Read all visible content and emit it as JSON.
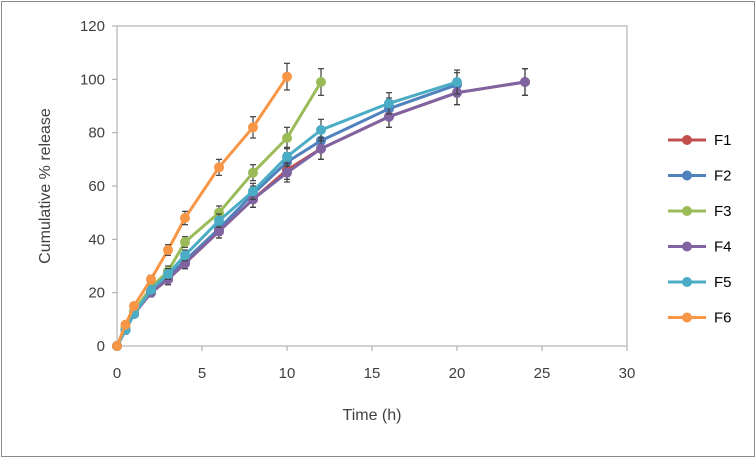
{
  "chart_data": {
    "type": "line",
    "title": "",
    "xlabel": "Time (h)",
    "ylabel": "Cumulative % release",
    "xlim": [
      0,
      30
    ],
    "ylim": [
      0,
      120
    ],
    "xticks": [
      0,
      5,
      10,
      15,
      20,
      25,
      30
    ],
    "yticks": [
      0,
      20,
      40,
      60,
      80,
      100,
      120
    ],
    "grid": false,
    "legend_position": "right",
    "series": [
      {
        "name": "F1",
        "color": "#c0504d",
        "x": [
          0,
          0.5,
          1,
          2,
          3,
          4,
          6,
          8,
          10,
          12,
          16,
          20,
          24
        ],
        "y": [
          0,
          6,
          12,
          20,
          25,
          31,
          43,
          55,
          66,
          74,
          86,
          95,
          99
        ],
        "err": [
          0,
          1,
          1,
          1.5,
          2,
          2,
          2.5,
          3,
          3.5,
          4,
          4,
          4.5,
          5
        ]
      },
      {
        "name": "F2",
        "color": "#4f81bd",
        "x": [
          0,
          0.5,
          1,
          2,
          3,
          4,
          6,
          8,
          10,
          12,
          16,
          20
        ],
        "y": [
          0,
          6,
          12,
          21,
          26,
          32,
          44,
          57,
          69,
          77,
          89,
          98
        ],
        "err": [
          0,
          1,
          1,
          1.5,
          2,
          2,
          2.5,
          3,
          3.5,
          4,
          4,
          4.5
        ]
      },
      {
        "name": "F3",
        "color": "#9bbb59",
        "x": [
          0,
          0.5,
          1,
          2,
          3,
          4,
          6,
          8,
          10,
          12
        ],
        "y": [
          0,
          7,
          13,
          22,
          28,
          39,
          50,
          65,
          78,
          99
        ],
        "err": [
          0,
          1,
          1,
          1.5,
          2,
          2,
          2.5,
          3,
          4,
          5
        ]
      },
      {
        "name": "F4",
        "color": "#8064a2",
        "x": [
          0,
          0.5,
          1,
          2,
          3,
          4,
          6,
          8,
          10,
          12,
          16,
          20,
          24
        ],
        "y": [
          0,
          6,
          12,
          20,
          25,
          31,
          43,
          55,
          65,
          74,
          86,
          95,
          99
        ],
        "err": [
          0,
          1,
          1,
          1.5,
          2,
          2,
          2.5,
          3,
          3.5,
          4,
          4,
          4.5,
          5
        ]
      },
      {
        "name": "F5",
        "color": "#4bacc6",
        "x": [
          0,
          0.5,
          1,
          2,
          3,
          4,
          6,
          8,
          10,
          12,
          16,
          20
        ],
        "y": [
          0,
          6,
          12,
          21,
          27,
          34,
          47,
          58,
          71,
          81,
          91,
          99
        ],
        "err": [
          0,
          1,
          1,
          1.5,
          2,
          2,
          2.5,
          3,
          3.5,
          4,
          4,
          4.5
        ]
      },
      {
        "name": "F6",
        "color": "#f79646",
        "x": [
          0,
          0.5,
          1,
          2,
          3,
          4,
          6,
          8,
          10
        ],
        "y": [
          0,
          8,
          15,
          25,
          36,
          48,
          67,
          82,
          101
        ],
        "err": [
          0,
          1,
          1,
          1.5,
          2,
          2.5,
          3,
          4,
          5
        ]
      }
    ]
  }
}
